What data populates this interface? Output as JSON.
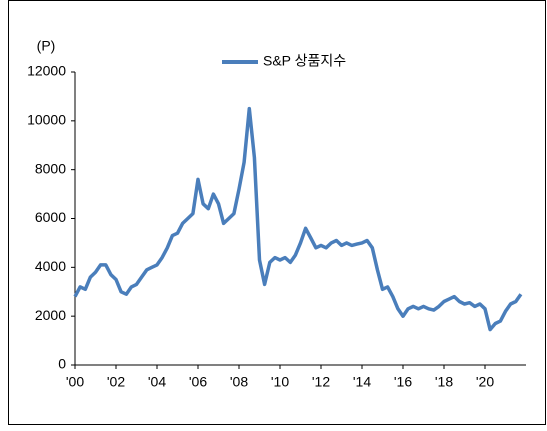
{
  "chart_data": {
    "type": "line",
    "y_unit": "(P)",
    "x": [
      2000,
      2000.25,
      2000.5,
      2000.75,
      2001,
      2001.25,
      2001.5,
      2001.75,
      2002,
      2002.25,
      2002.5,
      2002.75,
      2003,
      2003.25,
      2003.5,
      2003.75,
      2004,
      2004.25,
      2004.5,
      2004.75,
      2005,
      2005.25,
      2005.5,
      2005.75,
      2006,
      2006.25,
      2006.5,
      2006.75,
      2007,
      2007.25,
      2007.5,
      2007.75,
      2008,
      2008.25,
      2008.5,
      2008.75,
      2009,
      2009.25,
      2009.5,
      2009.75,
      2010,
      2010.25,
      2010.5,
      2010.75,
      2011,
      2011.25,
      2011.5,
      2011.75,
      2012,
      2012.25,
      2012.5,
      2012.75,
      2013,
      2013.25,
      2013.5,
      2013.75,
      2014,
      2014.25,
      2014.5,
      2014.75,
      2015,
      2015.25,
      2015.5,
      2015.75,
      2016,
      2016.25,
      2016.5,
      2016.75,
      2017,
      2017.25,
      2017.5,
      2017.75,
      2018,
      2018.25,
      2018.5,
      2018.75,
      2019,
      2019.25,
      2019.5,
      2019.75,
      2020,
      2020.25,
      2020.5,
      2020.75,
      2021,
      2021.25,
      2021.5,
      2021.75
    ],
    "series": [
      {
        "name": "S&P 상품지수",
        "color": "#4a7ebb",
        "values": [
          2800,
          3200,
          3100,
          3600,
          3800,
          4100,
          4100,
          3700,
          3500,
          3000,
          2900,
          3200,
          3300,
          3600,
          3900,
          4000,
          4100,
          4400,
          4800,
          5300,
          5400,
          5800,
          6000,
          6200,
          7600,
          6600,
          6400,
          7000,
          6600,
          5800,
          6000,
          6200,
          7200,
          8300,
          10500,
          8500,
          4300,
          3300,
          4200,
          4400,
          4300,
          4400,
          4200,
          4500,
          5000,
          5600,
          5200,
          4800,
          4900,
          4800,
          5000,
          5100,
          4900,
          5000,
          4900,
          4950,
          5000,
          5100,
          4800,
          3900,
          3100,
          3200,
          2800,
          2300,
          2000,
          2300,
          2400,
          2300,
          2400,
          2300,
          2250,
          2400,
          2600,
          2700,
          2800,
          2600,
          2500,
          2550,
          2400,
          2500,
          2300,
          1450,
          1700,
          1800,
          2200,
          2500,
          2600,
          2900
        ]
      }
    ],
    "xlim": [
      2000,
      2022
    ],
    "xticks": [
      {
        "value": 2000,
        "label": "'00"
      },
      {
        "value": 2002,
        "label": "'02"
      },
      {
        "value": 2004,
        "label": "'04"
      },
      {
        "value": 2006,
        "label": "'06"
      },
      {
        "value": 2008,
        "label": "'08"
      },
      {
        "value": 2010,
        "label": "'10"
      },
      {
        "value": 2012,
        "label": "'12"
      },
      {
        "value": 2014,
        "label": "'14"
      },
      {
        "value": 2016,
        "label": "'16"
      },
      {
        "value": 2018,
        "label": "'18"
      },
      {
        "value": 2020,
        "label": "'20"
      }
    ],
    "ylim": [
      0,
      12000
    ],
    "yticks": [
      0,
      2000,
      4000,
      6000,
      8000,
      10000,
      12000
    ],
    "grid": false
  }
}
